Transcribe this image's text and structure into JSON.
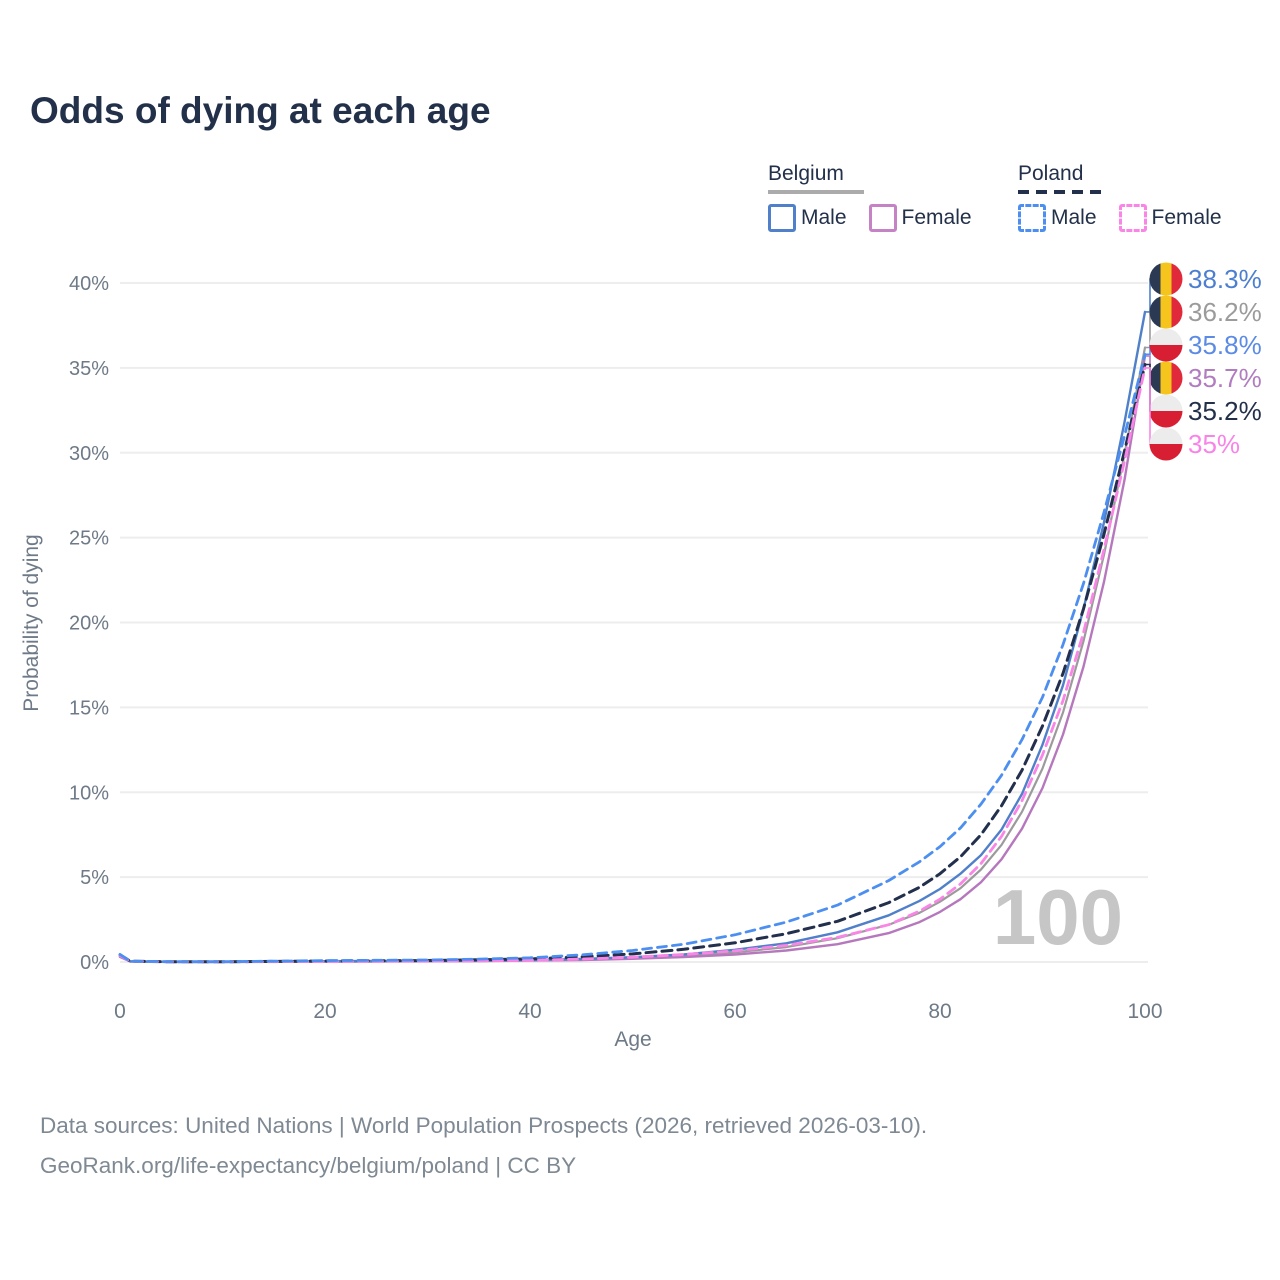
{
  "title": "Odds of dying at each age",
  "legend": {
    "belgium": {
      "title": "Belgium",
      "male_label": "Male",
      "female_label": "Female"
    },
    "poland": {
      "title": "Poland",
      "male_label": "Male",
      "female_label": "Female"
    }
  },
  "footer": {
    "line1": "Data sources: United Nations | World Population Prospects (2026, retrieved 2026-03-10).",
    "line2": "GeoRank.org/life-expectancy/belgium/poland | CC BY"
  },
  "chart_data": {
    "type": "line",
    "title": "Odds of dying at each age",
    "xlabel": "Age",
    "ylabel": "Probability of dying",
    "xlim": [
      0,
      100
    ],
    "ylim": [
      0,
      40
    ],
    "x_ticks": [
      0,
      20,
      40,
      60,
      80,
      100
    ],
    "y_ticks": [
      0,
      5,
      10,
      15,
      20,
      25,
      30,
      35,
      40
    ],
    "y_tick_suffix": "%",
    "grid": "horizontal",
    "legend_position": "top-right",
    "watermark": "100",
    "style": {
      "grid": "#ededed",
      "axis_text": "#6e7a87",
      "watermark": "#c6c6c6"
    },
    "flag_colors": {
      "belgium": [
        "#2b3a52",
        "#f6c51d",
        "#e02a3c"
      ],
      "poland": [
        "#ececec",
        "#d81e33"
      ]
    },
    "ages": [
      0,
      1,
      5,
      10,
      15,
      20,
      25,
      30,
      35,
      40,
      45,
      50,
      55,
      60,
      65,
      70,
      75,
      78,
      80,
      82,
      84,
      86,
      88,
      90,
      92,
      94,
      96,
      98,
      100
    ],
    "series": [
      {
        "id": "belgium-male",
        "name": "Belgium Male (probability of dying, %)",
        "country": "belgium",
        "sex": "male",
        "line": "solid",
        "color": "#4f80c9",
        "width": 2.4,
        "dash": "",
        "z": 3,
        "values": [
          0.35,
          0.04,
          0.01,
          0.01,
          0.03,
          0.05,
          0.06,
          0.07,
          0.09,
          0.12,
          0.18,
          0.28,
          0.45,
          0.72,
          1.1,
          1.75,
          2.75,
          3.6,
          4.3,
          5.2,
          6.3,
          7.8,
          9.9,
          12.8,
          16.3,
          20.8,
          25.9,
          31.8,
          38.3
        ],
        "end": {
          "text": "38.3%",
          "color": "#4c7fd0",
          "row": 0
        }
      },
      {
        "id": "belgium-total",
        "name": "Belgium Both sexes (probability of dying, %)",
        "country": "belgium",
        "sex": "total",
        "line": "solid",
        "color": "#9b9b9b",
        "width": 2.2,
        "dash": "",
        "z": 1,
        "values": [
          0.32,
          0.035,
          0.01,
          0.01,
          0.025,
          0.035,
          0.05,
          0.055,
          0.075,
          0.1,
          0.15,
          0.23,
          0.37,
          0.57,
          0.88,
          1.4,
          2.2,
          2.9,
          3.55,
          4.35,
          5.45,
          6.9,
          8.85,
          11.4,
          14.7,
          18.9,
          24.0,
          29.9,
          36.2
        ],
        "end": {
          "text": "36.2%",
          "color": "#9b9b9b",
          "row": 1
        }
      },
      {
        "id": "poland-male",
        "name": "Poland Male (probability of dying, %)",
        "country": "poland",
        "sex": "male",
        "line": "dashed",
        "color": "#4d8ff0",
        "width": 2.8,
        "dash": "9 6",
        "z": 6,
        "values": [
          0.45,
          0.05,
          0.015,
          0.015,
          0.045,
          0.08,
          0.1,
          0.12,
          0.17,
          0.25,
          0.42,
          0.68,
          1.05,
          1.6,
          2.35,
          3.35,
          4.8,
          5.9,
          6.8,
          7.9,
          9.3,
          11.0,
          13.1,
          15.6,
          18.7,
          22.3,
          26.5,
          31.0,
          35.8
        ],
        "end": {
          "text": "35.8%",
          "color": "#5b8be5",
          "row": 2
        }
      },
      {
        "id": "belgium-female",
        "name": "Belgium Female (probability of dying, %)",
        "country": "belgium",
        "sex": "female",
        "line": "solid",
        "color": "#b678bd",
        "width": 2.4,
        "dash": "",
        "z": 2,
        "values": [
          0.3,
          0.03,
          0.008,
          0.008,
          0.015,
          0.02,
          0.03,
          0.04,
          0.06,
          0.08,
          0.12,
          0.19,
          0.29,
          0.44,
          0.68,
          1.05,
          1.7,
          2.35,
          2.95,
          3.7,
          4.7,
          6.05,
          7.85,
          10.25,
          13.4,
          17.4,
          22.4,
          28.4,
          35.7
        ],
        "end": {
          "text": "35.7%",
          "color": "#b17cc0",
          "row": 3
        }
      },
      {
        "id": "poland-total",
        "name": "Poland Both sexes (probability of dying, %)",
        "country": "poland",
        "sex": "total",
        "line": "dashed",
        "color": "#22304d",
        "width": 3,
        "dash": "10 6",
        "z": 4,
        "values": [
          0.42,
          0.045,
          0.012,
          0.012,
          0.035,
          0.06,
          0.07,
          0.09,
          0.13,
          0.18,
          0.3,
          0.48,
          0.75,
          1.13,
          1.67,
          2.4,
          3.5,
          4.4,
          5.2,
          6.2,
          7.5,
          9.2,
          11.3,
          13.9,
          17.0,
          20.8,
          25.2,
          30.1,
          35.2
        ],
        "end": {
          "text": "35.2%",
          "color": "#22304a",
          "row": 4
        }
      },
      {
        "id": "poland-female",
        "name": "Poland Female (probability of dying, %)",
        "country": "poland",
        "sex": "female",
        "line": "dashed",
        "color": "#f985e6",
        "width": 2.8,
        "dash": "9 6",
        "z": 5,
        "values": [
          0.38,
          0.04,
          0.01,
          0.01,
          0.02,
          0.03,
          0.04,
          0.05,
          0.07,
          0.1,
          0.17,
          0.28,
          0.44,
          0.66,
          0.98,
          1.45,
          2.2,
          3.0,
          3.7,
          4.6,
          5.8,
          7.4,
          9.5,
          12.2,
          15.4,
          19.4,
          24.3,
          29.5,
          35.0
        ],
        "end": {
          "text": "35%",
          "color": "#f884e8",
          "row": 5
        }
      }
    ]
  }
}
